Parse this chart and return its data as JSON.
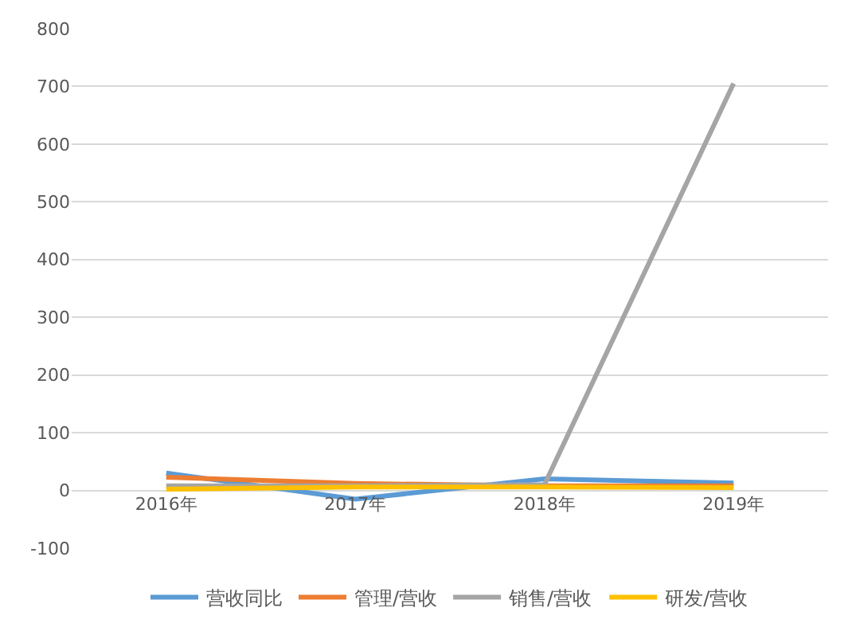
{
  "chart_data": {
    "type": "line",
    "categories": [
      "2016年",
      "2017年",
      "2018年",
      "2019年"
    ],
    "series": [
      {
        "name": "营收同比",
        "color": "#5b9bd5",
        "values": [
          30,
          -15,
          20,
          13
        ]
      },
      {
        "name": "管理/营收",
        "color": "#ed7d31",
        "values": [
          23,
          12,
          8,
          8
        ]
      },
      {
        "name": "销售/营收",
        "color": "#a5a5a5",
        "values": [
          8,
          8,
          10,
          705
        ]
      },
      {
        "name": "研发/营收",
        "color": "#ffc000",
        "values": [
          2,
          6,
          6,
          5
        ]
      }
    ],
    "ylim": [
      -100,
      800
    ],
    "yticks": [
      -100,
      0,
      100,
      200,
      300,
      400,
      500,
      600,
      700,
      800
    ],
    "grid": "y",
    "legend": "bottom",
    "marker": "none",
    "line_style": "solid"
  }
}
